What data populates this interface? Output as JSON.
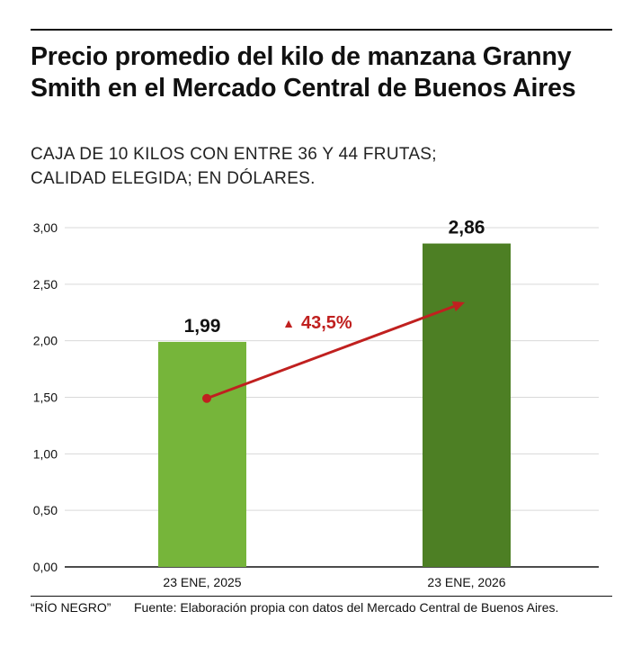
{
  "header": {
    "title": "Precio promedio del kilo de manzana Granny Smith en el Mercado Central de Buenos Aires",
    "subtitle_line1": "CAJA DE 10 KILOS CON ENTRE 36 Y 44 FRUTAS;",
    "subtitle_line2": "CALIDAD ELEGIDA; EN DÓLARES."
  },
  "chart_data": {
    "type": "bar",
    "title": "Precio promedio del kilo de manzana Granny Smith en el Mercado Central de Buenos Aires",
    "xlabel": "",
    "ylabel": "",
    "ylim": [
      0,
      3
    ],
    "y_ticks": [
      0,
      0.5,
      1,
      1.5,
      2,
      2.5,
      3
    ],
    "y_tick_labels": [
      "0,00",
      "0,50",
      "1,00",
      "1,50",
      "2,00",
      "2,50",
      "3,00"
    ],
    "grid": true,
    "categories": [
      "23 ENE, 2025",
      "23 ENE, 2026"
    ],
    "values": [
      1.99,
      2.86
    ],
    "value_labels": [
      "1,99",
      "2,86"
    ],
    "bar_colors": [
      "#76b53a",
      "#4d7f24"
    ],
    "annotation": {
      "text": "43,5%",
      "symbol": "▲",
      "color": "#c0201f",
      "arrow_from_value": 1.49,
      "arrow_to_value": 2.34
    }
  },
  "footer": {
    "brand": "“RÍO NEGRO”",
    "source": "Fuente: Elaboración propia con datos del Mercado Central de Buenos Aires."
  }
}
